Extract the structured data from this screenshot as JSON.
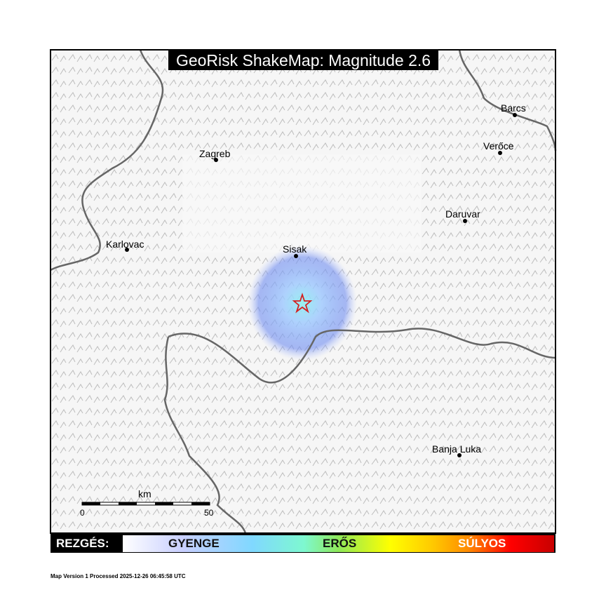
{
  "title": "GeoRisk ShakeMap: Magnitude 2.6",
  "cities": [
    {
      "name": "Zagreb"
    },
    {
      "name": "Karlovac"
    },
    {
      "name": "Sisak"
    },
    {
      "name": "Barcs"
    },
    {
      "name": "Verőce"
    },
    {
      "name": "Daruvar"
    },
    {
      "name": "Banja Luka"
    }
  ],
  "scale_bar": {
    "unit": "km",
    "start": "0",
    "end": "50"
  },
  "legend": {
    "label": "REZGÉS:",
    "levels": [
      "GYENGE",
      "ERŐS",
      "SÚLYOS"
    ],
    "colors": [
      "#ffffff",
      "#80d8ff",
      "#8ee85a",
      "#ffff00",
      "#ff8c00",
      "#c80000"
    ]
  },
  "epicenter": {
    "icon": "star-icon",
    "color": "#d42020"
  },
  "footer": "Map Version 1 Processed 2025-12-26 06:45:58 UTC"
}
